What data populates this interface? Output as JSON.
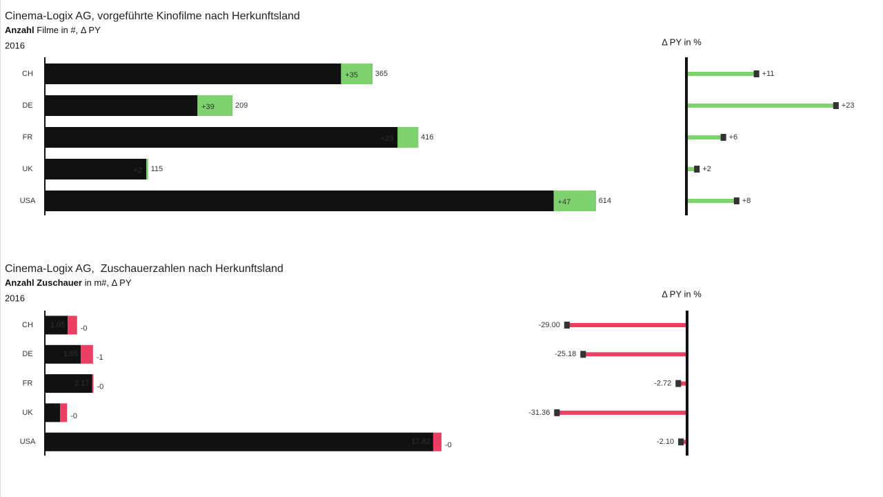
{
  "chart_data": [
    {
      "type": "bar",
      "title": "Cinema-Logix AG, vorgeführte Kinofilme nach Herkunftsland",
      "subtitle_bold": "Anzahl",
      "subtitle": "Filme in #, Δ PY",
      "year": "2016",
      "categories": [
        "CH",
        "DE",
        "FR",
        "UK",
        "USA"
      ],
      "values": [
        365,
        209,
        416,
        115,
        614
      ],
      "delta": [
        35,
        39,
        23,
        2,
        47
      ],
      "delta_labels": [
        "+35",
        "+39",
        "+23",
        "+2",
        "+47"
      ],
      "xlim": [
        0,
        615
      ],
      "delta_pct_title": "Δ PY in %",
      "delta_pct": [
        11,
        23,
        6,
        2,
        8
      ],
      "delta_pct_labels": [
        "+11",
        "+23",
        "+6",
        "+2",
        "+8"
      ],
      "delta_pct_xlim": [
        0,
        25
      ],
      "color": "#111111",
      "pos_color": "#7ed36f",
      "neg_color": "#ec3d62"
    },
    {
      "type": "bar",
      "title": "Cinema-Logix AG,  Zuschauerzahlen nach Herkunftsland",
      "subtitle_bold": "Anzahl Zuschauer",
      "subtitle": "in m#, Δ PY",
      "year": "2016",
      "categories": [
        "CH",
        "DE",
        "FR",
        "UK",
        "USA"
      ],
      "values": [
        1.05,
        1.65,
        2.17,
        0.7,
        17.82
      ],
      "value_labels": [
        "1.05",
        "1.65",
        "2.17",
        null,
        "17.82"
      ],
      "delta": [
        -0.43,
        -0.56,
        -0.06,
        -0.32,
        -0.38
      ],
      "delta_labels": [
        "-0",
        "-1",
        "-0",
        "-0",
        "-0"
      ],
      "xlim": [
        0,
        22
      ],
      "delta_pct_title": "Δ PY in %",
      "delta_pct": [
        -29.0,
        -25.18,
        -2.72,
        -31.36,
        -2.1
      ],
      "delta_pct_labels": [
        "-29.00",
        "-25.18",
        "-2.72",
        "-31.36",
        "-2.10"
      ],
      "delta_pct_xlim": [
        -35,
        0
      ],
      "color": "#111111",
      "pos_color": "#7ed36f",
      "neg_color": "#ec3d62"
    }
  ]
}
